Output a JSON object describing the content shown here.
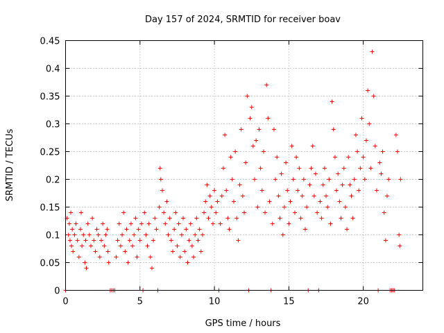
{
  "chart_data": {
    "type": "scatter",
    "title": "Day 157 of 2024, SRMTID for receiver boav",
    "xlabel": "GPS time / hours",
    "ylabel": "SRMTID / TECUs",
    "xlim": [
      0,
      24
    ],
    "ylim": [
      0,
      0.45
    ],
    "x_ticks": [
      0,
      5,
      10,
      15,
      20
    ],
    "x_tick_labels": [
      "0",
      "5",
      "10",
      "15",
      "20"
    ],
    "y_ticks": [
      0,
      0.05,
      0.1,
      0.15,
      0.2,
      0.25,
      0.3,
      0.35,
      0.4,
      0.45
    ],
    "y_tick_labels": [
      "0",
      "0.05",
      "0.1",
      "0.15",
      "0.2",
      "0.25",
      "0.3",
      "0.35",
      "0.4",
      "0.45"
    ],
    "grid": true,
    "marker": "+",
    "color": "#ff0000",
    "series": [
      {
        "name": "SRMTID",
        "points": [
          [
            0.0,
            0.0
          ],
          [
            0.1,
            0.13
          ],
          [
            0.2,
            0.1
          ],
          [
            0.25,
            0.12
          ],
          [
            0.3,
            0.09
          ],
          [
            0.35,
            0.14
          ],
          [
            0.4,
            0.08
          ],
          [
            0.45,
            0.11
          ],
          [
            0.5,
            0.07
          ],
          [
            0.6,
            0.1
          ],
          [
            0.7,
            0.12
          ],
          [
            0.8,
            0.09
          ],
          [
            0.9,
            0.06
          ],
          [
            1.0,
            0.11
          ],
          [
            1.05,
            0.14
          ],
          [
            1.1,
            0.08
          ],
          [
            1.2,
            0.1
          ],
          [
            1.3,
            0.05
          ],
          [
            1.35,
            0.09
          ],
          [
            1.4,
            0.04
          ],
          [
            1.5,
            0.12
          ],
          [
            1.6,
            0.1
          ],
          [
            1.7,
            0.08
          ],
          [
            1.8,
            0.13
          ],
          [
            1.9,
            0.09
          ],
          [
            2.0,
            0.07
          ],
          [
            2.1,
            0.11
          ],
          [
            2.2,
            0.1
          ],
          [
            2.3,
            0.06
          ],
          [
            2.4,
            0.09
          ],
          [
            2.5,
            0.12
          ],
          [
            2.6,
            0.08
          ],
          [
            2.7,
            0.1
          ],
          [
            2.8,
            0.11
          ],
          [
            2.85,
            0.07
          ],
          [
            2.9,
            0.05
          ],
          [
            3.0,
            0.0
          ],
          [
            3.1,
            0.0
          ],
          [
            3.2,
            0.0
          ],
          [
            3.3,
            0.0
          ],
          [
            3.4,
            0.06
          ],
          [
            3.5,
            0.09
          ],
          [
            3.6,
            0.12
          ],
          [
            3.7,
            0.08
          ],
          [
            3.8,
            0.1
          ],
          [
            3.9,
            0.14
          ],
          [
            4.0,
            0.07
          ],
          [
            4.1,
            0.11
          ],
          [
            4.2,
            0.05
          ],
          [
            4.3,
            0.09
          ],
          [
            4.4,
            0.12
          ],
          [
            4.5,
            0.08
          ],
          [
            4.6,
            0.1
          ],
          [
            4.7,
            0.13
          ],
          [
            4.8,
            0.06
          ],
          [
            4.9,
            0.11
          ],
          [
            5.0,
            0.09
          ],
          [
            5.1,
            0.12
          ],
          [
            5.2,
            0.0
          ],
          [
            5.3,
            0.14
          ],
          [
            5.4,
            0.1
          ],
          [
            5.5,
            0.08
          ],
          [
            5.6,
            0.12
          ],
          [
            5.7,
            0.06
          ],
          [
            5.8,
            0.04
          ],
          [
            5.9,
            0.09
          ],
          [
            6.0,
            0.13
          ],
          [
            6.1,
            0.11
          ],
          [
            6.2,
            0.0
          ],
          [
            6.3,
            0.15
          ],
          [
            6.35,
            0.22
          ],
          [
            6.4,
            0.2
          ],
          [
            6.5,
            0.18
          ],
          [
            6.6,
            0.14
          ],
          [
            6.7,
            0.12
          ],
          [
            6.8,
            0.16
          ],
          [
            6.9,
            0.1
          ],
          [
            7.0,
            0.13
          ],
          [
            7.1,
            0.09
          ],
          [
            7.2,
            0.07
          ],
          [
            7.3,
            0.11
          ],
          [
            7.4,
            0.14
          ],
          [
            7.5,
            0.08
          ],
          [
            7.6,
            0.12
          ],
          [
            7.7,
            0.06
          ],
          [
            7.8,
            0.1
          ],
          [
            7.9,
            0.13
          ],
          [
            8.0,
            0.07
          ],
          [
            8.1,
            0.11
          ],
          [
            8.2,
            0.05
          ],
          [
            8.3,
            0.09
          ],
          [
            8.4,
            0.12
          ],
          [
            8.5,
            0.08
          ],
          [
            8.6,
            0.06
          ],
          [
            8.7,
            0.1
          ],
          [
            8.8,
            0.13
          ],
          [
            8.9,
            0.09
          ],
          [
            9.0,
            0.11
          ],
          [
            9.1,
            0.07
          ],
          [
            9.2,
            0.1
          ],
          [
            9.3,
            0.14
          ],
          [
            9.4,
            0.16
          ],
          [
            9.5,
            0.19
          ],
          [
            9.6,
            0.13
          ],
          [
            9.7,
            0.17
          ],
          [
            9.8,
            0.15
          ],
          [
            9.9,
            0.12
          ],
          [
            10.0,
            0.18
          ],
          [
            10.1,
            0.14
          ],
          [
            10.2,
            0.16
          ],
          [
            10.3,
            0.0
          ],
          [
            10.4,
            0.12
          ],
          [
            10.5,
            0.17
          ],
          [
            10.6,
            0.22
          ],
          [
            10.7,
            0.28
          ],
          [
            10.8,
            0.18
          ],
          [
            10.9,
            0.13
          ],
          [
            11.0,
            0.11
          ],
          [
            11.1,
            0.24
          ],
          [
            11.2,
            0.2
          ],
          [
            11.3,
            0.16
          ],
          [
            11.4,
            0.25
          ],
          [
            11.5,
            0.13
          ],
          [
            11.6,
            0.09
          ],
          [
            11.7,
            0.19
          ],
          [
            11.8,
            0.29
          ],
          [
            11.9,
            0.17
          ],
          [
            12.0,
            0.14
          ],
          [
            12.1,
            0.23
          ],
          [
            12.2,
            0.35
          ],
          [
            12.3,
            0.0
          ],
          [
            12.4,
            0.31
          ],
          [
            12.5,
            0.33
          ],
          [
            12.6,
            0.26
          ],
          [
            12.7,
            0.2
          ],
          [
            12.8,
            0.27
          ],
          [
            12.9,
            0.15
          ],
          [
            13.0,
            0.29
          ],
          [
            13.1,
            0.22
          ],
          [
            13.2,
            0.18
          ],
          [
            13.3,
            0.25
          ],
          [
            13.4,
            0.14
          ],
          [
            13.5,
            0.37
          ],
          [
            13.6,
            0.31
          ],
          [
            13.7,
            0.16
          ],
          [
            13.8,
            0.0
          ],
          [
            13.9,
            0.12
          ],
          [
            14.0,
            0.29
          ],
          [
            14.1,
            0.2
          ],
          [
            14.2,
            0.24
          ],
          [
            14.3,
            0.17
          ],
          [
            14.4,
            0.13
          ],
          [
            14.5,
            0.21
          ],
          [
            14.6,
            0.1
          ],
          [
            14.7,
            0.15
          ],
          [
            14.8,
            0.23
          ],
          [
            14.9,
            0.18
          ],
          [
            15.0,
            0.12
          ],
          [
            15.1,
            0.16
          ],
          [
            15.2,
            0.26
          ],
          [
            15.3,
            0.2
          ],
          [
            15.4,
            0.14
          ],
          [
            15.5,
            0.24
          ],
          [
            15.6,
            0.18
          ],
          [
            15.7,
            0.22
          ],
          [
            15.8,
            0.13
          ],
          [
            15.9,
            0.17
          ],
          [
            16.0,
            0.2
          ],
          [
            16.1,
            0.11
          ],
          [
            16.2,
            0.15
          ],
          [
            16.3,
            0.0
          ],
          [
            16.4,
            0.19
          ],
          [
            16.5,
            0.22
          ],
          [
            16.6,
            0.26
          ],
          [
            16.7,
            0.17
          ],
          [
            16.8,
            0.21
          ],
          [
            16.9,
            0.14
          ],
          [
            17.0,
            0.0
          ],
          [
            17.1,
            0.16
          ],
          [
            17.2,
            0.13
          ],
          [
            17.3,
            0.19
          ],
          [
            17.4,
            0.22
          ],
          [
            17.5,
            0.17
          ],
          [
            17.6,
            0.15
          ],
          [
            17.7,
            0.2
          ],
          [
            17.8,
            0.12
          ],
          [
            17.9,
            0.34
          ],
          [
            18.0,
            0.29
          ],
          [
            18.1,
            0.24
          ],
          [
            18.2,
            0.18
          ],
          [
            18.3,
            0.21
          ],
          [
            18.4,
            0.16
          ],
          [
            18.5,
            0.13
          ],
          [
            18.6,
            0.19
          ],
          [
            18.7,
            0.22
          ],
          [
            18.8,
            0.15
          ],
          [
            18.9,
            0.11
          ],
          [
            19.0,
            0.24
          ],
          [
            19.1,
            0.19
          ],
          [
            19.2,
            0.17
          ],
          [
            19.3,
            0.13
          ],
          [
            19.4,
            0.2
          ],
          [
            19.5,
            0.28
          ],
          [
            19.6,
            0.25
          ],
          [
            19.7,
            0.18
          ],
          [
            19.8,
            0.22
          ],
          [
            19.9,
            0.31
          ],
          [
            20.0,
            0.24
          ],
          [
            20.1,
            0.2
          ],
          [
            20.2,
            0.27
          ],
          [
            20.3,
            0.36
          ],
          [
            20.4,
            0.3
          ],
          [
            20.5,
            0.22
          ],
          [
            20.6,
            0.43
          ],
          [
            20.7,
            0.35
          ],
          [
            20.8,
            0.26
          ],
          [
            20.9,
            0.18
          ],
          [
            21.0,
            0.0
          ],
          [
            21.1,
            0.23
          ],
          [
            21.2,
            0.21
          ],
          [
            21.3,
            0.25
          ],
          [
            21.4,
            0.14
          ],
          [
            21.5,
            0.09
          ],
          [
            21.6,
            0.17
          ],
          [
            21.7,
            0.2
          ],
          [
            21.8,
            0.0
          ],
          [
            21.9,
            0.0
          ],
          [
            22.0,
            0.0
          ],
          [
            22.1,
            0.0
          ],
          [
            22.2,
            0.28
          ],
          [
            22.3,
            0.25
          ],
          [
            22.4,
            0.1
          ],
          [
            22.45,
            0.08
          ],
          [
            22.5,
            0.2
          ]
        ]
      }
    ]
  }
}
